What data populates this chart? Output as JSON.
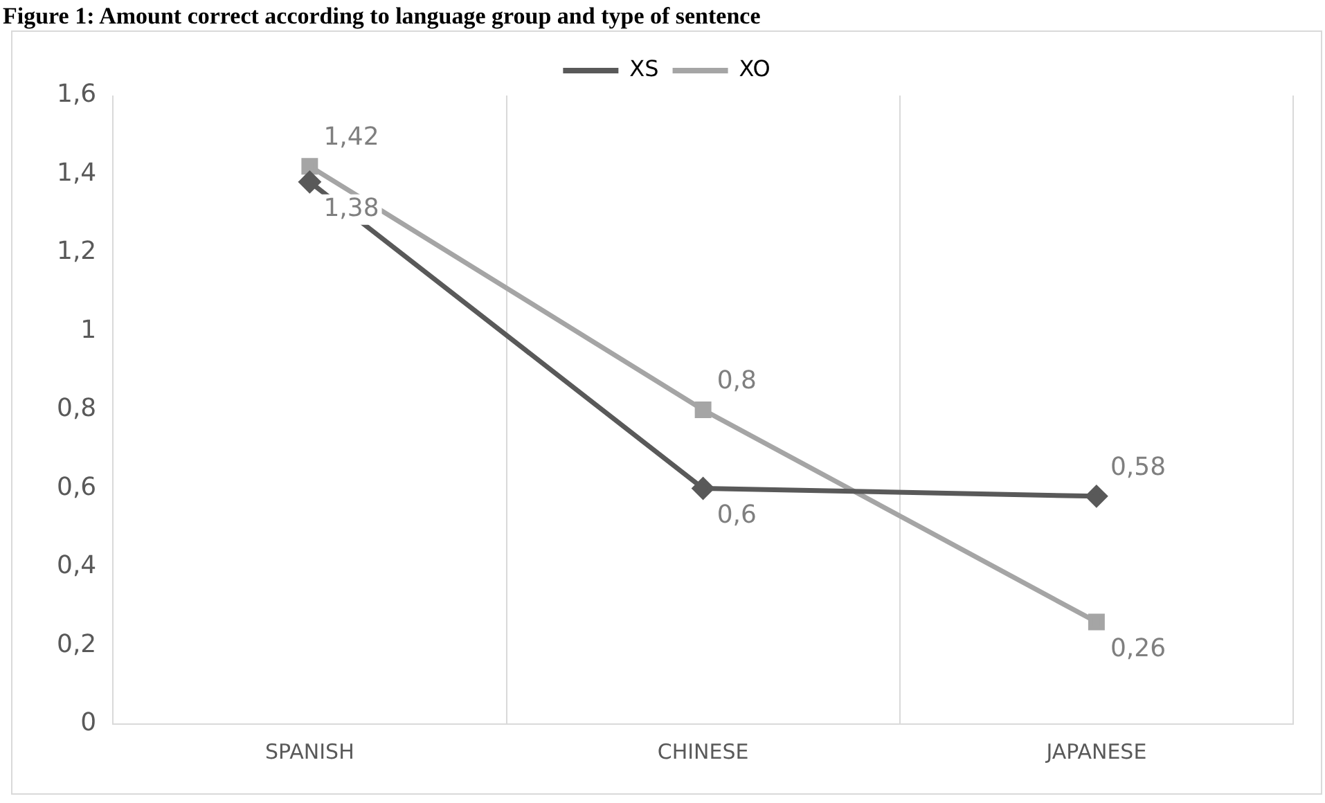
{
  "chart_data": {
    "type": "line",
    "title": "Figure 1: Amount correct according to language group and type of sentence",
    "categories": [
      "SPANISH",
      "CHINESE",
      "JAPANESE"
    ],
    "series": [
      {
        "name": "XS",
        "color": "#595959",
        "marker": "diamond",
        "values": [
          1.38,
          0.6,
          0.58
        ],
        "value_labels": [
          "1,38",
          "0,6",
          "0,58"
        ]
      },
      {
        "name": "XO",
        "color": "#a5a5a5",
        "marker": "square",
        "values": [
          1.42,
          0.8,
          0.26
        ],
        "value_labels": [
          "1,42",
          "0,8",
          "0,26"
        ]
      }
    ],
    "ylim": [
      0,
      1.6
    ],
    "yticks": [
      0,
      {
        "value": 0.2,
        "label": "0,2"
      },
      {
        "value": 0.4,
        "label": "0,4"
      },
      {
        "value": 0.6,
        "label": "0,6"
      },
      {
        "value": 0.8,
        "label": "0,8"
      },
      1,
      {
        "value": 1.2,
        "label": "1,2"
      },
      {
        "value": 1.4,
        "label": "1,4"
      },
      {
        "value": 1.6,
        "label": "1,6"
      }
    ],
    "grid": "x",
    "legend": "top",
    "line_style": "solid"
  }
}
